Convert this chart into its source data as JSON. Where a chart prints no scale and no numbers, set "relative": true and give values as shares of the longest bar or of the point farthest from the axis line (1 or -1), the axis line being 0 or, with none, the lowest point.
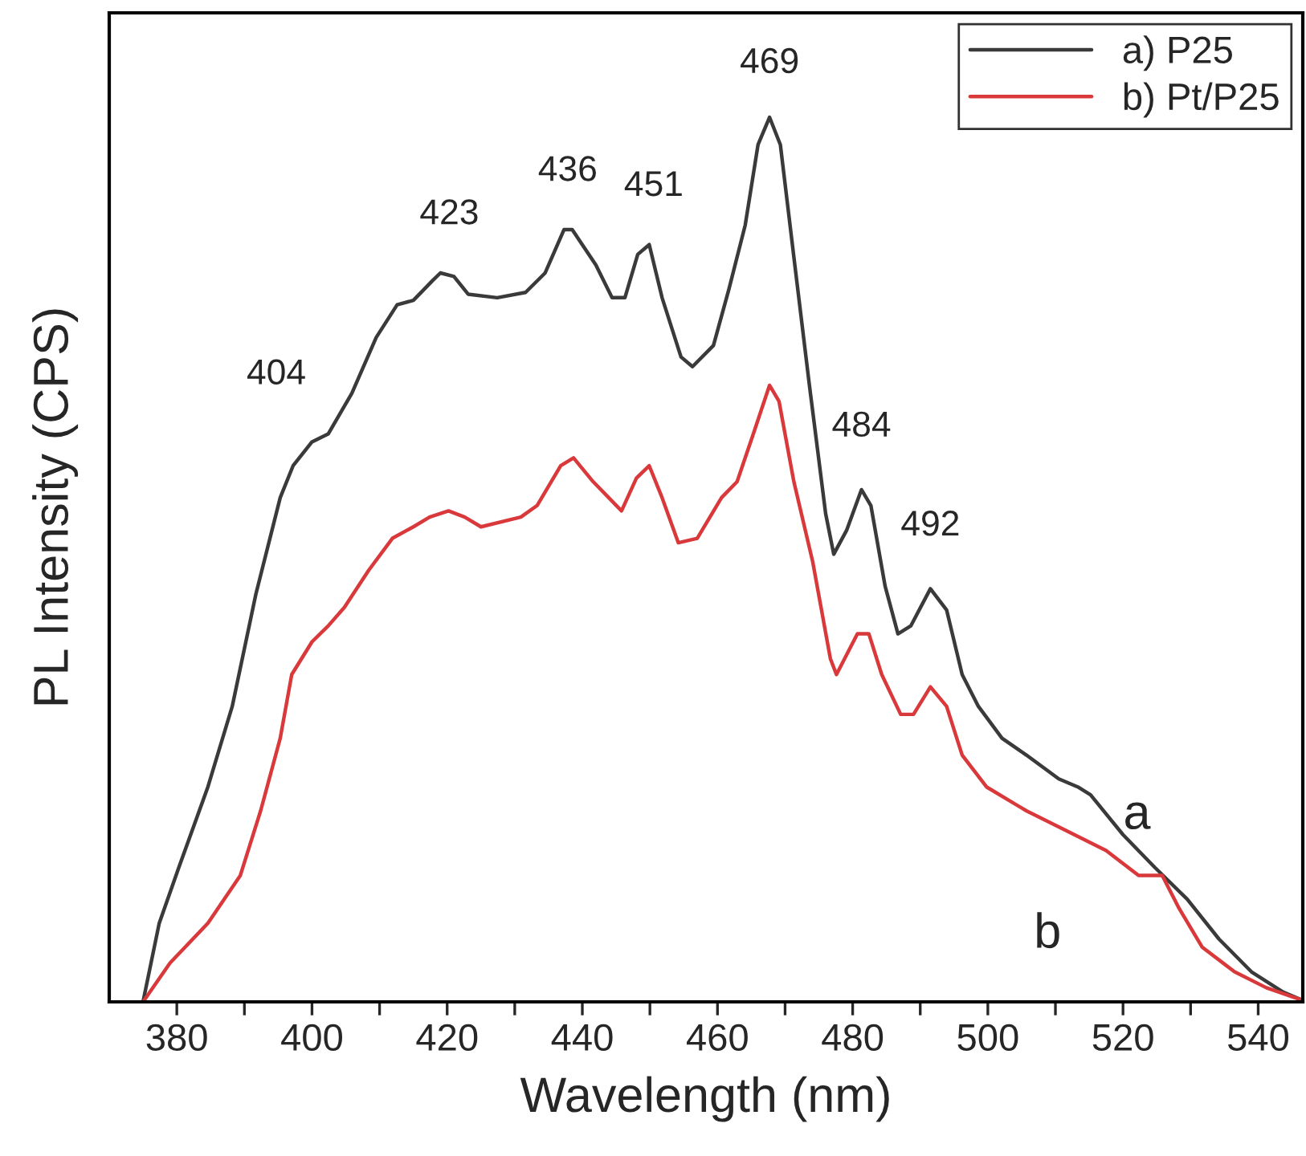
{
  "chart_data": {
    "type": "line",
    "relative": true,
    "xlabel": "Wavelength (nm)",
    "ylabel": "PL Intensity (CPS)",
    "xlim": [
      370,
      546.6
    ],
    "xticks": [
      380,
      {
        "value": 390,
        "label": null
      },
      400,
      {
        "value": 410,
        "label": null
      },
      420,
      {
        "value": 430,
        "label": null
      },
      440,
      {
        "value": 450,
        "label": null
      },
      460,
      {
        "value": 470,
        "label": null
      },
      480,
      {
        "value": 490,
        "label": null
      },
      500,
      {
        "value": 510,
        "label": null
      },
      520,
      {
        "value": 530,
        "label": null
      },
      540
    ],
    "legend": "top right",
    "grid": false,
    "marker": "none",
    "line_style": "solid",
    "series": [
      {
        "name": "a) P25",
        "color": "#3a3a3a",
        "x": [
          375,
          377.4,
          380.3,
          384.6,
          388.2,
          391.7,
          395.3,
          397.2,
          400,
          402.4,
          405.9,
          409.5,
          412.6,
          415,
          417.8,
          419,
          421,
          423.1,
          427.4,
          431.6,
          434.5,
          437.3,
          438.5,
          442,
          444.4,
          446.3,
          448.2,
          449.9,
          451.8,
          454.6,
          456.3,
          459.4,
          461.7,
          464.1,
          466,
          467.7,
          469.3,
          471.3,
          473.6,
          476,
          477.2,
          479.1,
          481.3,
          482.7,
          484.8,
          486.7,
          488.6,
          491.5,
          493.9,
          496.2,
          498.6,
          502.1,
          505.7,
          510.5,
          513.3,
          515.2,
          520,
          524.7,
          529.5,
          534.2,
          539,
          543.7,
          546.5
        ],
        "values": [
          0,
          0.089,
          0.152,
          0.243,
          0.334,
          0.461,
          0.57,
          0.606,
          0.633,
          0.642,
          0.688,
          0.751,
          0.788,
          0.793,
          0.815,
          0.824,
          0.82,
          0.8,
          0.796,
          0.802,
          0.824,
          0.873,
          0.873,
          0.833,
          0.796,
          0.796,
          0.845,
          0.856,
          0.796,
          0.729,
          0.718,
          0.742,
          0.806,
          0.878,
          0.969,
          1,
          0.969,
          0.842,
          0.697,
          0.552,
          0.506,
          0.533,
          0.579,
          0.561,
          0.47,
          0.416,
          0.425,
          0.467,
          0.443,
          0.37,
          0.334,
          0.298,
          0.279,
          0.252,
          0.243,
          0.234,
          0.189,
          0.152,
          0.116,
          0.071,
          0.034,
          0.011,
          0.002
        ]
      },
      {
        "name": "b) Pt/P25",
        "color": "#d9393b",
        "x": [
          375,
          379,
          384.6,
          389.4,
          392.4,
          395.3,
          397,
          400,
          402.4,
          404.8,
          408.4,
          411.9,
          415,
          417.4,
          420.2,
          422.6,
          425,
          430.9,
          433.3,
          436.8,
          438.7,
          441.6,
          445.8,
          448,
          449.9,
          451.8,
          454.2,
          457,
          460.6,
          462.9,
          465.3,
          467.7,
          469.1,
          471.3,
          474.1,
          476.7,
          477.6,
          480.7,
          482.4,
          484.3,
          487.1,
          489,
          491.5,
          493.9,
          496.2,
          499.8,
          505.7,
          512.8,
          517.5,
          522.3,
          525.8,
          528.2,
          531.7,
          536.5,
          541.2,
          546.5
        ],
        "values": [
          0,
          0.044,
          0.089,
          0.143,
          0.216,
          0.298,
          0.37,
          0.407,
          0.425,
          0.446,
          0.488,
          0.524,
          0.537,
          0.548,
          0.555,
          0.548,
          0.537,
          0.548,
          0.561,
          0.606,
          0.615,
          0.588,
          0.555,
          0.592,
          0.606,
          0.57,
          0.519,
          0.524,
          0.57,
          0.588,
          0.642,
          0.697,
          0.679,
          0.588,
          0.497,
          0.388,
          0.37,
          0.416,
          0.416,
          0.37,
          0.325,
          0.325,
          0.356,
          0.334,
          0.279,
          0.243,
          0.216,
          0.189,
          0.171,
          0.143,
          0.143,
          0.107,
          0.062,
          0.034,
          0.016,
          0.002
        ]
      }
    ],
    "annotations": [
      {
        "text": "404",
        "x": 400,
        "y": 0.633
      },
      {
        "text": "423",
        "x": 419,
        "y": 0.824
      },
      {
        "text": "436",
        "x": 438.5,
        "y": 0.873
      },
      {
        "text": "451",
        "x": 449.9,
        "y": 0.856
      },
      {
        "text": "469",
        "x": 467.7,
        "y": 1
      },
      {
        "text": "484",
        "x": 481.3,
        "y": 0.579
      },
      {
        "text": "492",
        "x": 491.5,
        "y": 0.467
      },
      {
        "text": "a",
        "x": 524.7,
        "y": 0.152
      },
      {
        "text": "b",
        "x": 512.8,
        "y": 0.189
      }
    ]
  }
}
